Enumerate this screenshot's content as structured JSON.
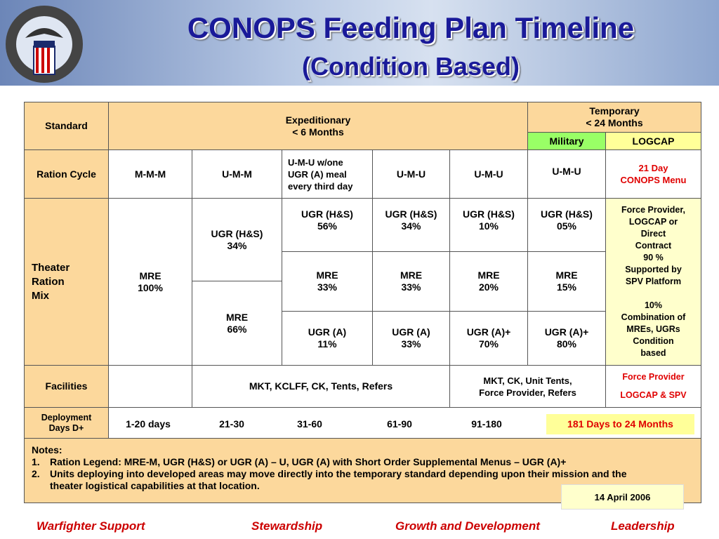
{
  "header": {
    "title": "CONOPS Feeding Plan Timeline",
    "subtitle": "(Condition Based)"
  },
  "table": {
    "header": {
      "standard": "Standard",
      "expeditionary": "Expeditionary\n< 6 Months",
      "temporary": "Temporary\n< 24 Months",
      "military": "Military",
      "logcap": "LOGCAP"
    },
    "ration_cycle": {
      "label": "Ration Cycle",
      "cells": [
        "M-M-M",
        "U-M-M",
        "U-M-U w/one\nUGR (A) meal\nevery third day",
        "U-M-U",
        "U-M-U",
        "U-M-U",
        "21 Day\nCONOPS Menu"
      ]
    },
    "theater_ration_mix": {
      "label": "Theater\nRation\nMix",
      "cells": [
        "MRE\n100%",
        "UGR (H&S)\n34%",
        "MRE\n66%",
        "UGR (H&S)\n56%",
        "UGR (H&S)\n34%",
        "UGR (H&S)\n10%",
        "UGR (H&S)\n05%",
        "MRE\n33%",
        "MRE\n33%",
        "MRE\n20%",
        "MRE\n15%",
        "UGR (A)\n11%",
        "UGR (A)\n33%",
        "UGR (A)+\n70%",
        "UGR (A)+\n80%",
        "Force Provider,\nLOGCAP or\nDirect\nContract\n90 %\nSupported by\nSPV Platform\n\n10%\nCombination of\nMREs, UGRs\nCondition\nbased"
      ]
    },
    "facilities": {
      "label": "Facilities",
      "cells": [
        "MKT, KCLFF, CK, Tents, Refers",
        "MKT, CK, Unit Tents,\nForce Provider, Refers",
        "Force Provider",
        "LOGCAP & SPV"
      ]
    },
    "deployment": {
      "label": "Deployment\nDays D+",
      "cells": [
        "1-20 days",
        "21-30",
        "31-60",
        "61-90",
        "91-180",
        "181 Days to 24 Months"
      ]
    },
    "notes": {
      "heading": "Notes:",
      "items": [
        {
          "number": "1.",
          "text": "Ration Legend: MRE-M, UGR (H&S) or UGR (A) – U, UGR (A) with Short Order Supplemental Menus – UGR (A)+"
        },
        {
          "number": "2.",
          "text": "Units deploying into developed areas may move directly into the temporary standard depending upon their mission and the theater logistical capabilities at that location."
        }
      ]
    }
  },
  "date": "14 April 2006",
  "footer": [
    "Warfighter Support",
    "Stewardship",
    "Growth and Development",
    "Leadership"
  ]
}
